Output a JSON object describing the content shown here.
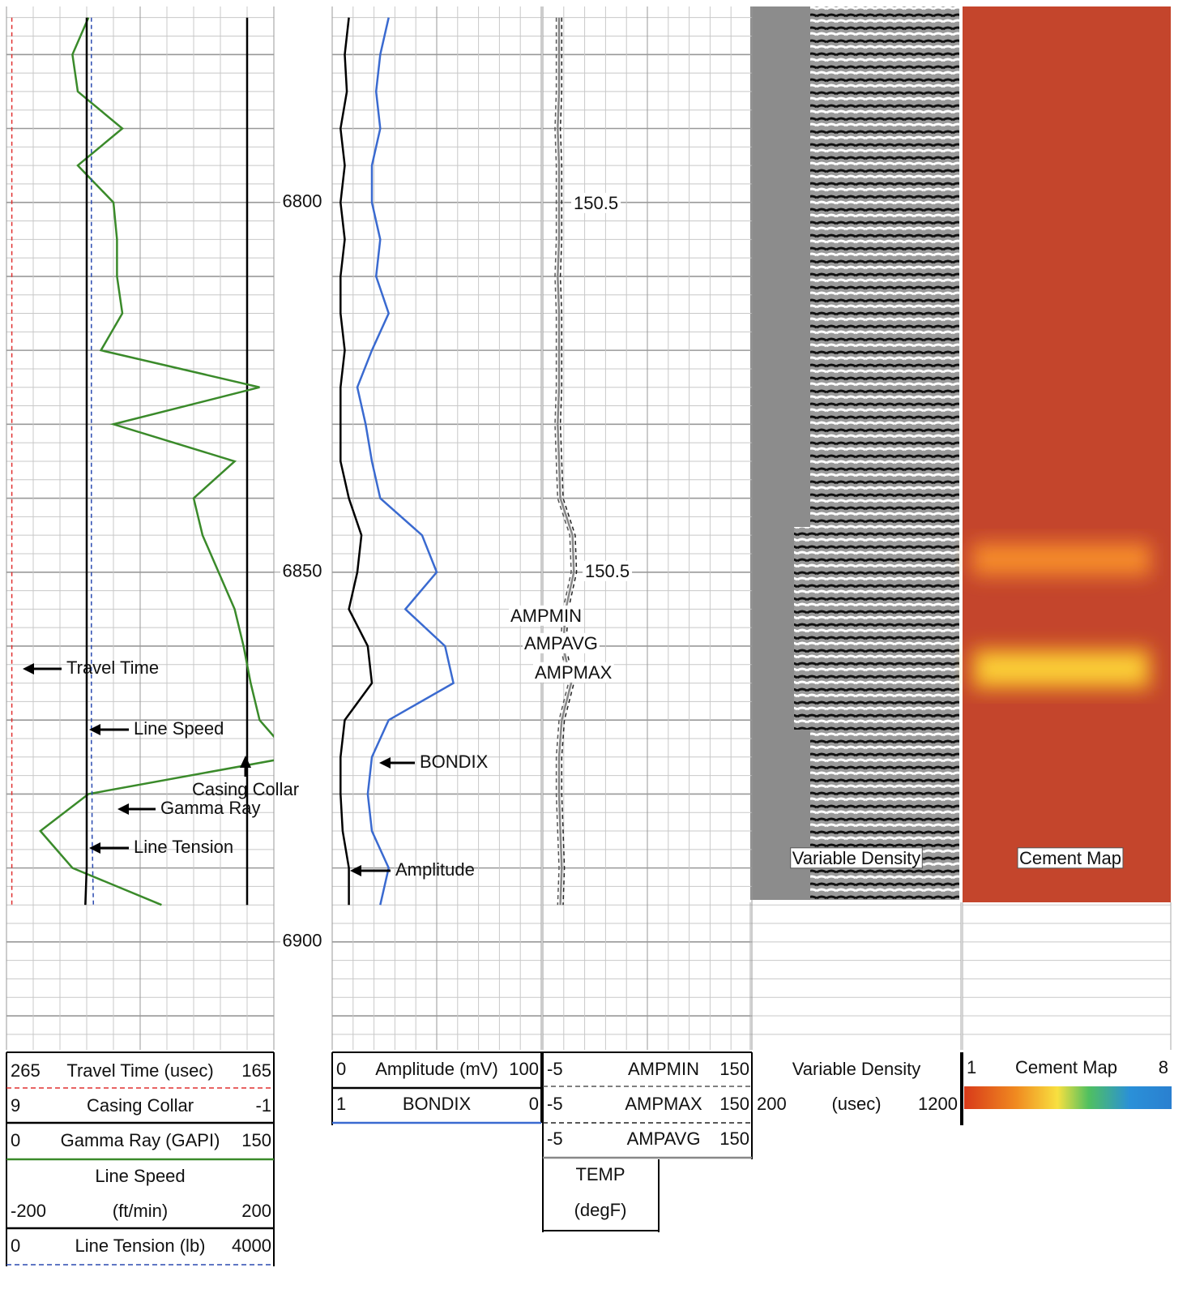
{
  "chart_data": {
    "type": "line",
    "y": [
      6775,
      6780,
      6785,
      6790,
      6795,
      6800,
      6805,
      6810,
      6815,
      6820,
      6825,
      6830,
      6835,
      6840,
      6845,
      6850,
      6855,
      6860,
      6865,
      6870,
      6875,
      6880,
      6885,
      6890,
      6895
    ],
    "ylim": [
      6773.5,
      6914.6
    ],
    "yticks": [
      6800,
      6850,
      6900
    ],
    "grid": true,
    "series": [
      {
        "name": "Travel Time (usec)",
        "track": 0,
        "xlim": [
          265,
          165
        ],
        "color": "#e03030",
        "dash": true,
        "values": [
          263,
          263,
          263,
          263,
          263,
          263,
          263,
          263,
          263,
          263,
          263,
          263,
          263,
          263,
          263,
          263,
          263,
          263,
          263,
          263,
          263,
          263,
          263,
          263,
          263
        ]
      },
      {
        "name": "Casing Collar",
        "track": 0,
        "xlim": [
          9,
          -1
        ],
        "color": "#000000",
        "dash": false,
        "values": [
          0,
          0,
          0,
          0,
          0,
          0,
          0,
          0,
          0,
          0,
          0,
          0,
          0,
          0,
          0,
          0,
          0,
          0,
          0,
          0,
          0,
          0,
          0,
          0,
          0
        ]
      },
      {
        "name": "Gamma Ray (GAPI)",
        "track": 0,
        "xlim": [
          0,
          150
        ],
        "color": "#3a8a2a",
        "dash": false,
        "values": [
          46,
          37,
          40,
          65,
          40,
          60,
          62,
          62,
          65,
          53,
          142,
          60,
          128,
          105,
          110,
          119,
          128,
          133,
          137,
          142,
          160,
          46,
          19,
          37,
          87
        ]
      },
      {
        "name": "Line Speed",
        "unit": "(ft/min)",
        "track": 0,
        "xlim": [
          -200,
          200
        ],
        "color": "#000000",
        "dash": false,
        "values": [
          -80,
          -80,
          -80,
          -80,
          -80,
          -80,
          -80,
          -80,
          -80,
          -80,
          -80,
          -80,
          -80,
          -80,
          -80,
          -80,
          -80,
          -80,
          -80,
          -80,
          -80,
          -80,
          -80,
          -80,
          -82
        ]
      },
      {
        "name": "Line Tension (lb)",
        "track": 0,
        "xlim": [
          0,
          4000
        ],
        "color": "#2a4ab0",
        "dash": true,
        "values": [
          1270,
          1270,
          1270,
          1270,
          1270,
          1270,
          1270,
          1270,
          1270,
          1270,
          1270,
          1270,
          1270,
          1270,
          1270,
          1270,
          1270,
          1270,
          1270,
          1270,
          1270,
          1280,
          1280,
          1290,
          1300
        ]
      },
      {
        "name": "Amplitude (mV)",
        "track": 1,
        "xlim": [
          0,
          100
        ],
        "color": "#000000",
        "dash": false,
        "values": [
          8,
          6,
          7,
          4,
          6,
          4,
          6,
          4,
          4,
          6,
          4,
          4,
          4,
          8,
          14,
          12,
          8,
          17,
          19,
          6,
          4,
          4,
          5,
          8,
          8
        ]
      },
      {
        "name": "BONDIX",
        "track": 1,
        "xlim": [
          1,
          0
        ],
        "color": "#3a6ad0",
        "dash": false,
        "values": [
          0.73,
          0.77,
          0.79,
          0.77,
          0.81,
          0.81,
          0.77,
          0.79,
          0.73,
          0.81,
          0.88,
          0.84,
          0.81,
          0.77,
          0.57,
          0.5,
          0.65,
          0.46,
          0.42,
          0.73,
          0.81,
          0.83,
          0.81,
          0.73,
          0.77
        ]
      },
      {
        "name": "AMPMIN",
        "track": 2,
        "xlim": [
          -5,
          150
        ],
        "color": "#555555",
        "dash": true,
        "values": [
          5,
          5,
          5,
          4,
          5,
          5,
          5,
          4,
          5,
          5,
          5,
          4,
          5,
          6,
          15,
          16,
          10,
          8,
          14,
          7,
          5,
          5,
          6,
          7,
          6
        ]
      },
      {
        "name": "AMPMAX",
        "track": 2,
        "xlim": [
          -5,
          150
        ],
        "color": "#222222",
        "dash": true,
        "values": [
          9,
          9,
          9,
          8,
          9,
          9,
          9,
          8,
          9,
          9,
          9,
          8,
          9,
          10,
          19,
          20,
          14,
          12,
          18,
          11,
          9,
          9,
          10,
          11,
          10
        ]
      },
      {
        "name": "AMPAVG",
        "track": 2,
        "xlim": [
          -5,
          150
        ],
        "color": "#888888",
        "dash": false,
        "values": [
          7,
          7,
          7,
          6,
          7,
          7,
          7,
          6,
          7,
          7,
          7,
          6,
          7,
          8,
          17,
          18,
          12,
          10,
          16,
          9,
          7,
          7,
          8,
          9,
          8
        ]
      }
    ]
  },
  "temp": {
    "name": "TEMP",
    "unit": "(degF)",
    "labels": [
      "150.5",
      "150.5"
    ]
  },
  "variable_density": {
    "name": "Variable Density",
    "unit": "(usec)",
    "xlim": [
      200,
      1200
    ]
  },
  "cement_map": {
    "name": "Cement Map",
    "xlim": [
      1,
      8
    ]
  },
  "annotations": [
    "Travel Time",
    "Line Speed",
    "Casing Collar",
    "Gamma Ray",
    "Line Tension",
    "BONDIX",
    "Amplitude",
    "AMPMIN",
    "AMPAVG",
    "AMPMAX",
    "Variable Density",
    "Cement Map"
  ]
}
